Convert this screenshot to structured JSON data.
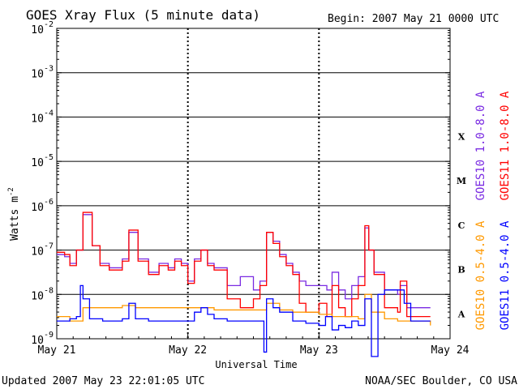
{
  "header": {
    "title": "GOES Xray Flux (5 minute data)",
    "begin": "Begin:  2007 May 21 0000 UTC"
  },
  "footer": {
    "updated": "Updated 2007 May 23 22:01:05 UTC",
    "credit": "NOAA/SEC Boulder, CO USA"
  },
  "colors": {
    "goes10_long": "#7a2be2",
    "goes11_long": "#ff0000",
    "goes10_short": "#ff9900",
    "goes11_short": "#0000ff",
    "axis": "#000000"
  },
  "chart_data": {
    "type": "line",
    "title": "GOES Xray Flux (5 minute data)",
    "xlabel": "Universal Time",
    "ylabel": "Watts m",
    "ylabel_superscript": "-2",
    "y_scale": "log",
    "ylim_exponents": [
      -9,
      -2
    ],
    "xlim_days": [
      0,
      3
    ],
    "x_ticks": [
      "May 21",
      "May 22",
      "May 23",
      "May 24"
    ],
    "y_tick_exponents": [
      "-2",
      "-3",
      "-4",
      "-5",
      "-6",
      "-7",
      "-8",
      "-9"
    ],
    "flare_classes": [
      {
        "label": "X",
        "exp": -4
      },
      {
        "label": "M",
        "exp": -5
      },
      {
        "label": "C",
        "exp": -6
      },
      {
        "label": "B",
        "exp": -7
      },
      {
        "label": "A",
        "exp": -8
      }
    ],
    "grid": "horizontal at each decade",
    "legend_placement": "right side, vertical",
    "series": [
      {
        "name": "GOES10 1.0-8.0 A",
        "key": "goes10_long",
        "points": [
          [
            0,
            -7.1
          ],
          [
            0.06,
            -7.15
          ],
          [
            0.1,
            -7.3
          ],
          [
            0.15,
            -7.0
          ],
          [
            0.2,
            -6.2
          ],
          [
            0.27,
            -6.9
          ],
          [
            0.33,
            -7.3
          ],
          [
            0.4,
            -7.4
          ],
          [
            0.5,
            -7.2
          ],
          [
            0.55,
            -6.6
          ],
          [
            0.62,
            -7.2
          ],
          [
            0.7,
            -7.5
          ],
          [
            0.78,
            -7.3
          ],
          [
            0.85,
            -7.4
          ],
          [
            0.9,
            -7.2
          ],
          [
            0.95,
            -7.3
          ],
          [
            1.0,
            -7.7
          ],
          [
            1.05,
            -7.2
          ],
          [
            1.1,
            -7.0
          ],
          [
            1.15,
            -7.3
          ],
          [
            1.2,
            -7.4
          ],
          [
            1.3,
            -7.8
          ],
          [
            1.4,
            -7.6
          ],
          [
            1.5,
            -7.9
          ],
          [
            1.55,
            -7.7
          ],
          [
            1.6,
            -6.6
          ],
          [
            1.65,
            -6.8
          ],
          [
            1.7,
            -7.1
          ],
          [
            1.75,
            -7.3
          ],
          [
            1.8,
            -7.5
          ],
          [
            1.85,
            -7.7
          ],
          [
            1.9,
            -7.8
          ],
          [
            2.0,
            -7.8
          ],
          [
            2.06,
            -7.9
          ],
          [
            2.1,
            -7.5
          ],
          [
            2.15,
            -7.9
          ],
          [
            2.2,
            -8.1
          ],
          [
            2.25,
            -7.8
          ],
          [
            2.3,
            -7.6
          ],
          [
            2.35,
            -6.5
          ],
          [
            2.38,
            -7.0
          ],
          [
            2.42,
            -7.5
          ],
          [
            2.5,
            -7.9
          ],
          [
            2.6,
            -8.0
          ],
          [
            2.62,
            -7.8
          ],
          [
            2.67,
            -8.3
          ],
          [
            2.75,
            -8.3
          ],
          [
            2.8,
            -8.3
          ],
          [
            2.85,
            -8.3
          ]
        ]
      },
      {
        "name": "GOES11 1.0-8.0 A",
        "key": "goes11_long",
        "points": [
          [
            0,
            -7.05
          ],
          [
            0.06,
            -7.1
          ],
          [
            0.1,
            -7.35
          ],
          [
            0.15,
            -7.0
          ],
          [
            0.2,
            -6.15
          ],
          [
            0.27,
            -6.9
          ],
          [
            0.33,
            -7.35
          ],
          [
            0.4,
            -7.45
          ],
          [
            0.5,
            -7.25
          ],
          [
            0.55,
            -6.55
          ],
          [
            0.62,
            -7.25
          ],
          [
            0.7,
            -7.55
          ],
          [
            0.78,
            -7.35
          ],
          [
            0.85,
            -7.45
          ],
          [
            0.9,
            -7.25
          ],
          [
            0.95,
            -7.35
          ],
          [
            1.0,
            -7.75
          ],
          [
            1.05,
            -7.25
          ],
          [
            1.1,
            -7.0
          ],
          [
            1.15,
            -7.35
          ],
          [
            1.2,
            -7.45
          ],
          [
            1.3,
            -8.1
          ],
          [
            1.4,
            -8.3
          ],
          [
            1.5,
            -8.1
          ],
          [
            1.55,
            -7.8
          ],
          [
            1.6,
            -6.6
          ],
          [
            1.65,
            -6.85
          ],
          [
            1.7,
            -7.15
          ],
          [
            1.75,
            -7.35
          ],
          [
            1.8,
            -7.55
          ],
          [
            1.85,
            -8.2
          ],
          [
            1.9,
            -8.4
          ],
          [
            2.0,
            -8.2
          ],
          [
            2.06,
            -8.5
          ],
          [
            2.1,
            -7.8
          ],
          [
            2.15,
            -8.3
          ],
          [
            2.2,
            -8.5
          ],
          [
            2.25,
            -8.1
          ],
          [
            2.3,
            -7.8
          ],
          [
            2.35,
            -6.45
          ],
          [
            2.38,
            -7.0
          ],
          [
            2.42,
            -7.55
          ],
          [
            2.5,
            -8.3
          ],
          [
            2.6,
            -8.4
          ],
          [
            2.62,
            -7.7
          ],
          [
            2.67,
            -8.5
          ],
          [
            2.75,
            -8.5
          ],
          [
            2.8,
            -8.5
          ],
          [
            2.85,
            -8.5
          ]
        ]
      },
      {
        "name": "GOES10 0.5-4.0 A",
        "key": "goes10_short",
        "points": [
          [
            0,
            -8.5
          ],
          [
            0.1,
            -8.6
          ],
          [
            0.2,
            -8.3
          ],
          [
            0.3,
            -8.3
          ],
          [
            0.4,
            -8.3
          ],
          [
            0.5,
            -8.25
          ],
          [
            0.6,
            -8.3
          ],
          [
            0.7,
            -8.3
          ],
          [
            0.8,
            -8.3
          ],
          [
            0.9,
            -8.3
          ],
          [
            1.0,
            -8.3
          ],
          [
            1.1,
            -8.3
          ],
          [
            1.2,
            -8.35
          ],
          [
            1.3,
            -8.35
          ],
          [
            1.4,
            -8.35
          ],
          [
            1.5,
            -8.35
          ],
          [
            1.6,
            -8.2
          ],
          [
            1.7,
            -8.35
          ],
          [
            1.8,
            -8.4
          ],
          [
            1.9,
            -8.4
          ],
          [
            2.0,
            -8.45
          ],
          [
            2.1,
            -8.5
          ],
          [
            2.2,
            -8.5
          ],
          [
            2.3,
            -8.55
          ],
          [
            2.35,
            -8.0
          ],
          [
            2.4,
            -8.4
          ],
          [
            2.5,
            -8.55
          ],
          [
            2.6,
            -8.6
          ],
          [
            2.7,
            -8.6
          ],
          [
            2.8,
            -8.6
          ],
          [
            2.85,
            -8.7
          ]
        ]
      },
      {
        "name": "GOES11 0.5-4.0 A",
        "key": "goes11_short",
        "points": [
          [
            0,
            -8.6
          ],
          [
            0.05,
            -8.6
          ],
          [
            0.1,
            -8.55
          ],
          [
            0.15,
            -8.5
          ],
          [
            0.18,
            -7.8
          ],
          [
            0.2,
            -8.1
          ],
          [
            0.25,
            -8.55
          ],
          [
            0.35,
            -8.6
          ],
          [
            0.5,
            -8.55
          ],
          [
            0.55,
            -8.2
          ],
          [
            0.6,
            -8.55
          ],
          [
            0.7,
            -8.6
          ],
          [
            0.8,
            -8.6
          ],
          [
            0.9,
            -8.6
          ],
          [
            1.0,
            -8.6
          ],
          [
            1.05,
            -8.4
          ],
          [
            1.1,
            -8.3
          ],
          [
            1.15,
            -8.45
          ],
          [
            1.2,
            -8.55
          ],
          [
            1.3,
            -8.6
          ],
          [
            1.4,
            -8.6
          ],
          [
            1.5,
            -8.6
          ],
          [
            1.55,
            -8.6
          ],
          [
            1.58,
            -9.3
          ],
          [
            1.6,
            -8.1
          ],
          [
            1.65,
            -8.3
          ],
          [
            1.7,
            -8.4
          ],
          [
            1.8,
            -8.6
          ],
          [
            1.85,
            -8.6
          ],
          [
            1.9,
            -8.65
          ],
          [
            2.0,
            -8.7
          ],
          [
            2.05,
            -8.5
          ],
          [
            2.1,
            -8.8
          ],
          [
            2.15,
            -8.7
          ],
          [
            2.2,
            -8.75
          ],
          [
            2.25,
            -8.6
          ],
          [
            2.3,
            -8.7
          ],
          [
            2.35,
            -8.1
          ],
          [
            2.4,
            -9.4
          ],
          [
            2.45,
            -8.0
          ],
          [
            2.5,
            -7.9
          ],
          [
            2.6,
            -7.9
          ],
          [
            2.65,
            -8.2
          ],
          [
            2.7,
            -8.6
          ],
          [
            2.8,
            -8.6
          ],
          [
            2.85,
            -8.6
          ]
        ]
      }
    ]
  }
}
